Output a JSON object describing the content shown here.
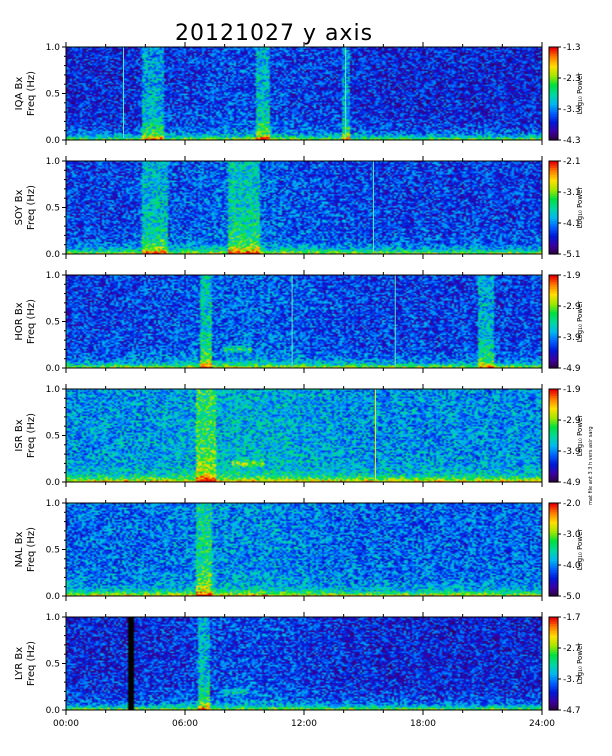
{
  "title": "20121027 y axis",
  "side_note": "mat file ant 3 3 h vers asir sarg",
  "colors": {
    "colormap": [
      "#2a0033",
      "#3b00a0",
      "#0018d8",
      "#0060ff",
      "#00b8f0",
      "#00d8a0",
      "#00e040",
      "#a0e800",
      "#ffe000",
      "#ff8000",
      "#e80000"
    ],
    "axis": "#000000",
    "background": "#ffffff"
  },
  "x_ticks": [
    "00:00",
    "06:00",
    "12:00",
    "18:00",
    "24:00"
  ],
  "colorbar_label": "Log₁₀ Power",
  "chart_data": [
    {
      "type": "heatmap",
      "station": "IQA Bx",
      "ylabel": "IQA Bx\nFreq (Hz)",
      "xlim": [
        0,
        24
      ],
      "ylim": [
        0.0,
        1.0
      ],
      "y_ticks": [
        "0.0",
        "0.5",
        "1.0"
      ],
      "colorbar_ticks": [
        "-1.3",
        "-2.3",
        "-3.3",
        "-4.3"
      ],
      "colorbar_range": [
        -4.3,
        -1.3
      ],
      "vertical_lines": [
        2.9,
        14.1
      ],
      "broadband_events": [
        [
          3.8,
          4.9
        ],
        [
          9.6,
          10.3
        ],
        [
          13.9,
          14.3
        ]
      ],
      "dark_gap": null,
      "narrowband": null
    },
    {
      "type": "heatmap",
      "station": "SOY Bx",
      "ylabel": "SOY Bx\nFreq (Hz)",
      "xlim": [
        0,
        24
      ],
      "ylim": [
        0.0,
        1.0
      ],
      "y_ticks": [
        "0.0",
        "0.5",
        "1.0"
      ],
      "colorbar_ticks": [
        "-2.1",
        "-3.1",
        "-4.1",
        "-5.1"
      ],
      "colorbar_range": [
        -5.1,
        -2.1
      ],
      "vertical_lines": [
        15.5
      ],
      "broadband_events": [
        [
          3.8,
          5.1
        ],
        [
          8.2,
          9.8
        ]
      ],
      "dark_gap": null,
      "narrowband": null
    },
    {
      "type": "heatmap",
      "station": "HOR Bx",
      "ylabel": "HOR Bx\nFreq (Hz)",
      "xlim": [
        0,
        24
      ],
      "ylim": [
        0.0,
        1.0
      ],
      "y_ticks": [
        "0.0",
        "0.5",
        "1.0"
      ],
      "colorbar_ticks": [
        "-1.9",
        "-2.9",
        "-3.9",
        "-4.9"
      ],
      "colorbar_range": [
        -4.9,
        -1.9
      ],
      "vertical_lines": [
        11.4,
        16.6
      ],
      "broadband_events": [
        [
          6.8,
          7.4
        ],
        [
          20.8,
          21.6
        ]
      ],
      "dark_gap": null,
      "narrowband": [
        8.0,
        9.4,
        0.2
      ]
    },
    {
      "type": "heatmap",
      "station": "ISR Bx",
      "ylabel": "ISR Bx\nFreq (Hz)",
      "xlim": [
        0,
        24
      ],
      "ylim": [
        0.0,
        1.0
      ],
      "y_ticks": [
        "0.0",
        "0.5",
        "1.0"
      ],
      "colorbar_ticks": [
        "-1.9",
        "-2.9",
        "-3.9",
        "-4.9"
      ],
      "colorbar_range": [
        -4.9,
        -1.9
      ],
      "vertical_lines": [
        15.6
      ],
      "broadband_events": [
        [
          6.6,
          7.6
        ]
      ],
      "dark_gap": null,
      "narrowband": [
        8.4,
        10.0,
        0.2
      ]
    },
    {
      "type": "heatmap",
      "station": "NAL Bx",
      "ylabel": "NAL Bx\nFreq (Hz)",
      "xlim": [
        0,
        24
      ],
      "ylim": [
        0.0,
        1.0
      ],
      "y_ticks": [
        "0.0",
        "0.5",
        "1.0"
      ],
      "colorbar_ticks": [
        "-2.0",
        "-3.0",
        "-4.0",
        "-5.0"
      ],
      "colorbar_range": [
        -5.0,
        -2.0
      ],
      "vertical_lines": [],
      "broadband_events": [
        [
          6.6,
          7.4
        ]
      ],
      "dark_gap": null,
      "narrowband": null
    },
    {
      "type": "heatmap",
      "station": "LYR Bx",
      "ylabel": "LYR Bx\nFreq (Hz)",
      "xlim": [
        0,
        24
      ],
      "ylim": [
        0.0,
        1.0
      ],
      "y_ticks": [
        "0.0",
        "0.5",
        "1.0"
      ],
      "colorbar_ticks": [
        "-1.7",
        "-2.7",
        "-3.7",
        "-4.7"
      ],
      "colorbar_range": [
        -4.7,
        -1.7
      ],
      "vertical_lines": [],
      "broadband_events": [
        [
          6.7,
          7.3
        ]
      ],
      "dark_gap": [
        3.15,
        3.4
      ],
      "narrowband": [
        8.0,
        9.2,
        0.2
      ]
    }
  ]
}
